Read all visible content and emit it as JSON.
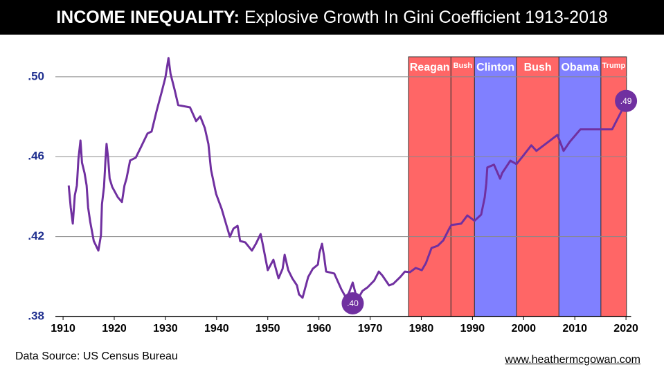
{
  "chart_data": {
    "type": "line",
    "title_bold": "INCOME INEQUALITY:",
    "title": "Explosive Growth In Gini Coefficient 1913-2018",
    "source": "Data Source: US Census Bureau",
    "website": "www.heathermcgowan.com",
    "color": "#7030a0",
    "xlim": [
      1908.5,
      2021
    ],
    "ylim": [
      0.38,
      0.51
    ],
    "xticks": [
      1910,
      1920,
      1930,
      1940,
      1950,
      1960,
      1970,
      1980,
      1990,
      2000,
      2010,
      2020
    ],
    "yticks": [
      {
        "value": 0.38,
        "label": ".38"
      },
      {
        "value": 0.42,
        "label": ".42"
      },
      {
        "value": 0.46,
        "label": ".46"
      },
      {
        "value": 0.5,
        "label": ".50"
      }
    ],
    "grid": true,
    "x": [
      1911.1,
      1911.5,
      1911.9,
      1912.3,
      1912.7,
      1913.0,
      1913.4,
      1913.7,
      1914.2,
      1914.6,
      1914.9,
      1915.3,
      1916.0,
      1916.9,
      1917.4,
      1917.6,
      1918.0,
      1918.3,
      1918.5,
      1918.8,
      1919.1,
      1919.6,
      1920.7,
      1921.5,
      1922.0,
      1922.4,
      1923.1,
      1924.2,
      1925.2,
      1926.5,
      1927.3,
      1928.3,
      1929.2,
      1930.0,
      1930.6,
      1931.0,
      1931.8,
      1932.5,
      1934.8,
      1936.0,
      1936.8,
      1937.7,
      1938.4,
      1938.9,
      1939.9,
      1941.0,
      1941.8,
      1942.6,
      1943.3,
      1944.1,
      1944.6,
      1945.6,
      1946.9,
      1947.7,
      1948.6,
      1949.0,
      1950.0,
      1951.1,
      1952.1,
      1952.9,
      1953.3,
      1954.0,
      1954.8,
      1955.7,
      1956.1,
      1956.8,
      1957.9,
      1958.8,
      1959.8,
      1960.1,
      1960.6,
      1961.0,
      1961.4,
      1963.0,
      1964.4,
      1965.3,
      1965.9,
      1966.6,
      1967.2,
      1967.9,
      1968.5,
      1969.5,
      1970.8,
      1971.7,
      1972.4,
      1973.7,
      1974.5,
      1975.9,
      1976.8,
      1977.8,
      1978.9,
      1980.1,
      1980.9,
      1982.0,
      1983.2,
      1984.3,
      1985.6,
      1985.9,
      1987.8,
      1989.0,
      1990.4,
      1991.7,
      1992.4,
      1992.7,
      1992.9,
      1994.2,
      1995.4,
      1995.8,
      1997.4,
      1998.6,
      1999.7,
      2001.5,
      2002.5,
      2004.8,
      2006.6,
      2007.8,
      2009.0,
      2011.1,
      2017.3,
      2020.0
    ],
    "values": [
      0.4456,
      0.4345,
      0.4265,
      0.4407,
      0.4456,
      0.4588,
      0.4681,
      0.457,
      0.4518,
      0.4456,
      0.4345,
      0.4275,
      0.4178,
      0.413,
      0.4206,
      0.4362,
      0.4449,
      0.4588,
      0.4664,
      0.4595,
      0.4491,
      0.4449,
      0.4397,
      0.4373,
      0.4456,
      0.4491,
      0.4581,
      0.4595,
      0.4647,
      0.4716,
      0.4726,
      0.4831,
      0.4917,
      0.4997,
      0.5094,
      0.5015,
      0.4935,
      0.4858,
      0.4847,
      0.4778,
      0.4802,
      0.4743,
      0.4664,
      0.4536,
      0.4414,
      0.4338,
      0.4268,
      0.4199,
      0.424,
      0.4254,
      0.4178,
      0.4171,
      0.413,
      0.4165,
      0.4213,
      0.4164,
      0.4032,
      0.4084,
      0.3991,
      0.4039,
      0.4109,
      0.4032,
      0.3991,
      0.3956,
      0.3911,
      0.3894,
      0.3998,
      0.4039,
      0.406,
      0.4119,
      0.4164,
      0.4102,
      0.4025,
      0.4015,
      0.3935,
      0.3894,
      0.3921,
      0.397,
      0.3911,
      0.3901,
      0.3928,
      0.3946,
      0.398,
      0.4025,
      0.4005,
      0.3956,
      0.3963,
      0.3998,
      0.4025,
      0.4022,
      0.4043,
      0.4032,
      0.4067,
      0.4143,
      0.4154,
      0.4181,
      0.4247,
      0.4258,
      0.4265,
      0.4306,
      0.4279,
      0.431,
      0.4397,
      0.4466,
      0.4546,
      0.456,
      0.449,
      0.4518,
      0.458,
      0.4563,
      0.4598,
      0.4657,
      0.4629,
      0.4674,
      0.4709,
      0.4629,
      0.4674,
      0.4737,
      0.4737,
      0.4872
    ],
    "regions": [
      {
        "label": "Reagan",
        "start": 1977.5,
        "end": 1985.8,
        "color": "#ff6666"
      },
      {
        "label": "Bush",
        "start": 1985.8,
        "end": 1990.4,
        "color": "#ff6666",
        "label_size": "small"
      },
      {
        "label": "Clinton",
        "start": 1990.4,
        "end": 1998.6,
        "color": "#8080ff"
      },
      {
        "label": "Bush",
        "start": 1998.6,
        "end": 2006.9,
        "color": "#ff6666"
      },
      {
        "label": "Obama",
        "start": 2006.9,
        "end": 2015.1,
        "color": "#8080ff"
      },
      {
        "label": "Trump",
        "start": 2015.1,
        "end": 2020.1,
        "color": "#ff6666",
        "label_size": "small"
      }
    ],
    "annotations": [
      {
        "label": ".40",
        "x": 1966.6,
        "y": 0.3866
      },
      {
        "label": ".49",
        "x": 2020.0,
        "y": 0.4879
      }
    ]
  }
}
